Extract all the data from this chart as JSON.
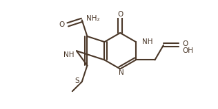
{
  "bg": "#ffffff",
  "lc": "#4a3728",
  "lw": 1.5,
  "fs": 7.5,
  "figsize": [
    3.16,
    1.59
  ],
  "dpi": 100,
  "xlim": [
    -1.0,
    9.5
  ],
  "ylim": [
    -0.5,
    5.5
  ]
}
